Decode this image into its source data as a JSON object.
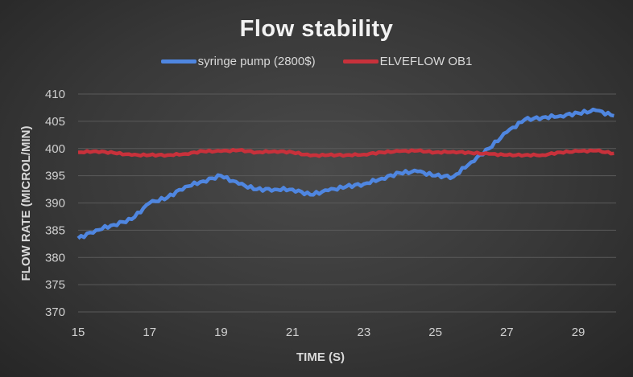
{
  "chart_data": {
    "type": "line",
    "title": "Flow stability",
    "xlabel": "TIME (S)",
    "ylabel": "FLOW RATE (MICROL/MIN)",
    "xlim": [
      15,
      30
    ],
    "ylim": [
      370,
      410
    ],
    "xticks": [
      15,
      17,
      19,
      21,
      23,
      25,
      27,
      29
    ],
    "yticks": [
      370,
      375,
      380,
      385,
      390,
      395,
      400,
      405,
      410
    ],
    "grid": true,
    "legend_position": "top",
    "x": [
      15,
      15.5,
      16,
      16.5,
      17,
      17.5,
      18,
      18.5,
      19,
      19.5,
      20,
      20.5,
      21,
      21.5,
      22,
      22.5,
      23,
      23.5,
      24,
      24.5,
      25,
      25.5,
      26,
      26.5,
      27,
      27.5,
      28,
      28.5,
      29,
      29.5,
      30
    ],
    "series": [
      {
        "name": "syringe pump (2800$)",
        "color": "#4f86e0",
        "values": [
          383.5,
          385,
          386,
          387,
          390,
          391,
          393,
          394,
          395,
          393.5,
          392.5,
          392.5,
          392.5,
          391.5,
          392.3,
          393,
          393.5,
          394.5,
          395.5,
          395.8,
          395,
          394.8,
          397.5,
          400,
          403,
          405.3,
          405.7,
          406,
          406.5,
          407,
          406
        ]
      },
      {
        "name": "ELVEFLOW OB1",
        "color": "#c8313b",
        "values": [
          399.3,
          399.5,
          399.2,
          398.8,
          398.8,
          398.8,
          399,
          399.5,
          399.5,
          399.7,
          399.3,
          399.5,
          399.3,
          398.7,
          398.8,
          398.8,
          398.9,
          399.3,
          399.5,
          399.6,
          399.3,
          399.4,
          399.2,
          399,
          398.8,
          398.8,
          398.8,
          399.3,
          399.5,
          399.6,
          399.1
        ]
      }
    ]
  }
}
